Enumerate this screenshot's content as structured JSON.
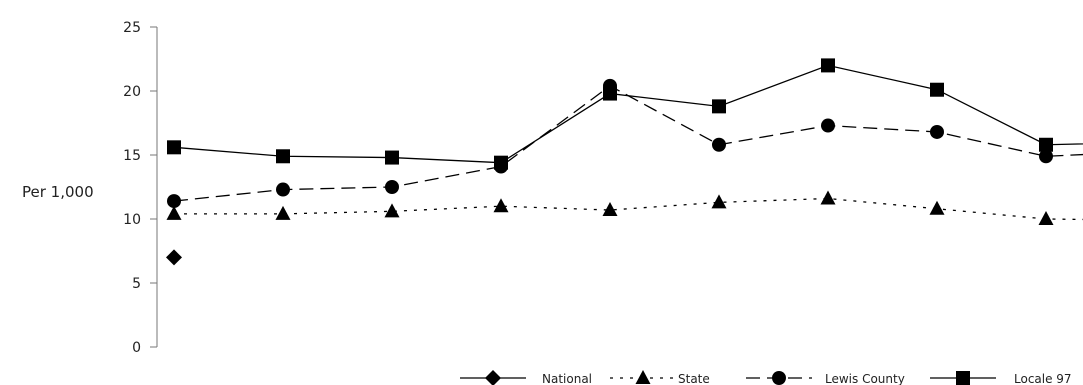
{
  "chart_data": {
    "type": "line",
    "ylabel": "Per 1,000",
    "ylim": [
      0,
      25
    ],
    "yticks": [
      0,
      5,
      10,
      15,
      20,
      25
    ],
    "x": [
      1,
      2,
      3,
      4,
      5,
      6,
      7,
      8,
      9,
      10
    ],
    "grid": false,
    "legend_position": "bottom-right",
    "series": [
      {
        "name": "National",
        "marker": "diamond",
        "dash": "solid",
        "values": [
          7.0,
          null,
          null,
          null,
          null,
          null,
          null,
          null,
          null,
          null
        ]
      },
      {
        "name": "State",
        "marker": "triangle",
        "dash": "dotted",
        "values": [
          10.4,
          10.4,
          10.6,
          11.0,
          10.7,
          11.3,
          11.6,
          10.8,
          10.0,
          9.9
        ]
      },
      {
        "name": "Lewis County",
        "marker": "circle",
        "dash": "dashed",
        "values": [
          11.4,
          12.3,
          12.5,
          14.1,
          20.4,
          15.8,
          17.3,
          16.8,
          14.9,
          15.3
        ]
      },
      {
        "name": "Locale 97",
        "marker": "square",
        "dash": "solid",
        "values": [
          15.6,
          14.9,
          14.8,
          14.4,
          19.8,
          18.8,
          22.0,
          20.1,
          15.8,
          16.0
        ]
      }
    ]
  }
}
